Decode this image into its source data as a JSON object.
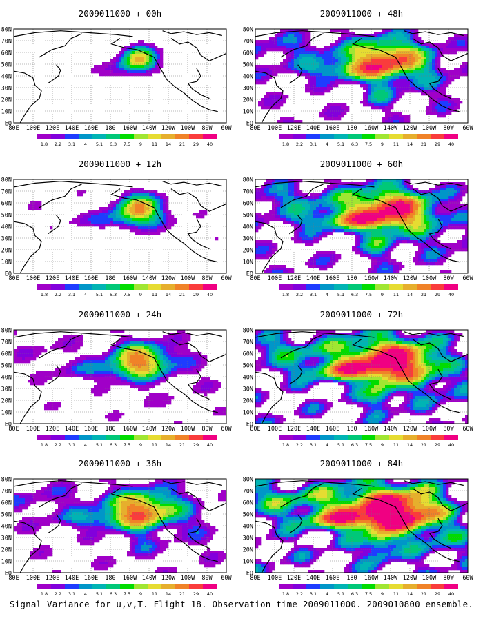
{
  "caption": "Signal Variance for u,v,T. Flight 18. Observation time 2009011000. 2009010800 ensemble.",
  "lat_labels": [
    "80N",
    "70N",
    "60N",
    "50N",
    "40N",
    "30N",
    "20N",
    "10N",
    "EQ"
  ],
  "lon_labels": [
    "80E",
    "100E",
    "120E",
    "140E",
    "160E",
    "180",
    "160W",
    "140W",
    "120W",
    "100W",
    "80W",
    "60W"
  ],
  "colorbar": {
    "levels": [
      "1.8",
      "2.2",
      "3.1",
      "4",
      "5.1",
      "6.3",
      "7.5",
      "9",
      "11",
      "14",
      "21",
      "29",
      "40"
    ],
    "colors": [
      "#a000c8",
      "#8200dc",
      "#1e3cff",
      "#0096c8",
      "#00b4b4",
      "#00c878",
      "#00dc00",
      "#a0e632",
      "#e6dc32",
      "#e6af2d",
      "#f08228",
      "#fa3c3c",
      "#f00082"
    ]
  },
  "panels": [
    {
      "title": "2009011000 + 00h"
    },
    {
      "title": "2009011000 + 48h"
    },
    {
      "title": "2009011000 + 12h"
    },
    {
      "title": "2009011000 + 60h"
    },
    {
      "title": "2009011000 + 24h"
    },
    {
      "title": "2009011000 + 72h"
    },
    {
      "title": "2009011000 + 36h"
    },
    {
      "title": "2009011000 + 84h"
    }
  ]
}
